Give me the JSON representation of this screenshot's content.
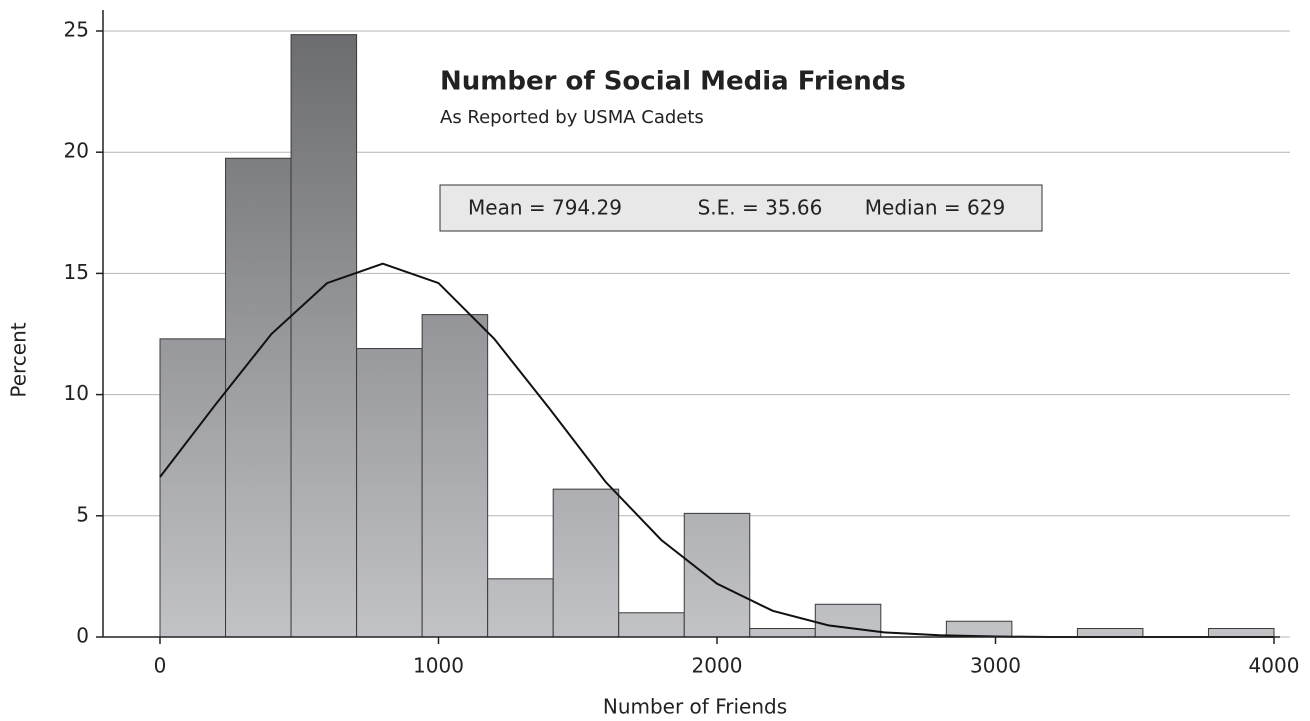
{
  "chart_data": {
    "type": "histogram",
    "title": "Number of Social Media Friends",
    "subtitle": "As Reported by USMA Cadets",
    "annotations": [
      "Mean = 794.29",
      "S.E. = 35.66",
      "Median = 629"
    ],
    "x_label": "Number of Friends",
    "y_label": "Percent",
    "bins": [
      0,
      235.3,
      470.6,
      705.9,
      941.2,
      1176.5,
      1411.8,
      1647.1,
      1882.4,
      2117.6,
      2352.9,
      2588.2,
      2823.5,
      3058.8,
      3294.1,
      3529.4,
      3764.7,
      4000
    ],
    "values": [
      12.3,
      19.75,
      24.85,
      11.9,
      13.3,
      2.4,
      6.1,
      1.0,
      5.1,
      0.35,
      1.35,
      0,
      0.65,
      0,
      0.35,
      0,
      0.35
    ],
    "gradient": [
      "#6b6c70",
      "#c2c3c6"
    ],
    "curve": {
      "x": [
        0,
        200,
        400,
        600,
        800,
        1000,
        1200,
        1400,
        1600,
        1800,
        2000,
        2200,
        2400,
        2600,
        2800,
        3000,
        3200,
        3400,
        3600,
        3800,
        4000
      ],
      "values": [
        6.6,
        9.6,
        12.5,
        14.6,
        15.4,
        14.6,
        12.3,
        9.4,
        6.4,
        4.0,
        2.2,
        1.08,
        0.48,
        0.19,
        0.07,
        0.02,
        0,
        0,
        0,
        0,
        0
      ],
      "color": "#111111"
    },
    "xlim": [
      0,
      4000
    ],
    "xticks": [
      0,
      1000,
      2000,
      3000,
      4000
    ],
    "ylim": [
      0,
      25
    ],
    "yticks": [
      0,
      5,
      10,
      15,
      20,
      25
    ],
    "grid": true
  }
}
